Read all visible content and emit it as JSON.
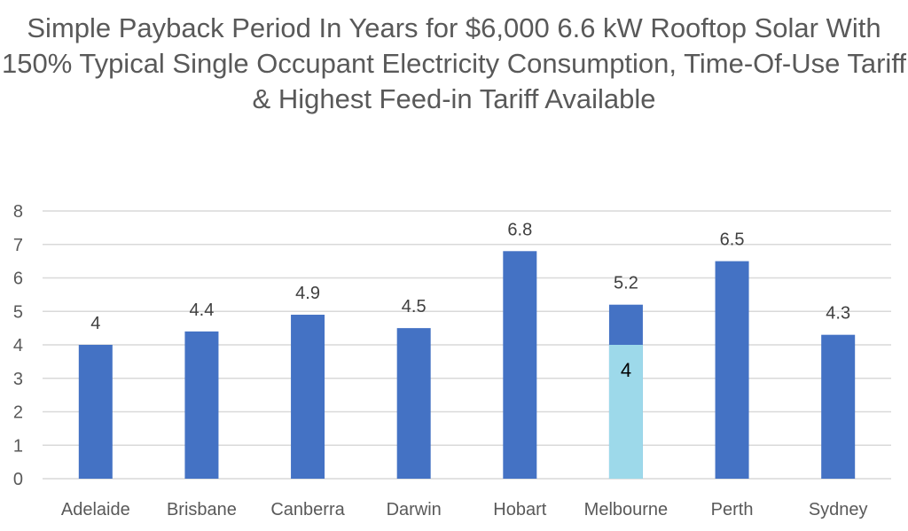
{
  "chart_data": {
    "type": "bar",
    "title": "Simple Payback Period In Years for $6,000 6.6 kW Rooftop Solar With 150% Typical Single Occupant Electricity Consumption, Time-Of-Use Tariff & Highest Feed-in Tariff Available",
    "categories": [
      "Adelaide",
      "Brisbane",
      "Canberra",
      "Darwin",
      "Hobart",
      "Melbourne",
      "Perth",
      "Sydney"
    ],
    "series": [
      {
        "values": [
          4,
          4.4,
          4.9,
          4.5,
          6.8,
          5.2,
          6.5,
          4.3
        ],
        "color": "#4472C4"
      },
      {
        "values": [
          null,
          null,
          null,
          null,
          null,
          4,
          null,
          null
        ],
        "color": "#9DD9EA"
      }
    ],
    "ylim": [
      0,
      8
    ],
    "yticks": [
      0,
      1,
      2,
      3,
      4,
      5,
      6,
      7,
      8
    ],
    "grid": true,
    "legend": "none",
    "xlabel": "",
    "ylabel": ""
  }
}
